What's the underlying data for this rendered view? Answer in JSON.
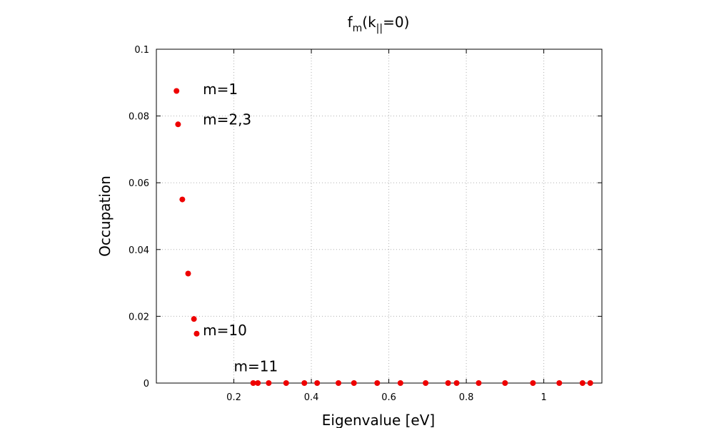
{
  "chart_data": {
    "type": "scatter",
    "title": {
      "main": "f",
      "sub": "m",
      "tail_open": "(k",
      "tail_sub": "||",
      "tail_close": "=0)"
    },
    "xlabel": "Eigenvalue [eV]",
    "ylabel": "Occupation",
    "xlim": [
      0.0,
      1.15
    ],
    "ylim": [
      0,
      0.1
    ],
    "x_ticks": [
      0.2,
      0.4,
      0.6,
      0.8,
      1
    ],
    "x_tick_labels": [
      "0.2",
      "0.4",
      "0.6",
      "0.8",
      "1"
    ],
    "y_ticks": [
      0,
      0.02,
      0.04,
      0.06,
      0.08,
      0.1
    ],
    "y_tick_labels": [
      "0",
      "0.02",
      "0.04",
      "0.06",
      "0.08",
      "0.1"
    ],
    "grid": true,
    "marker_color": "#ee0000",
    "series": [
      {
        "points": [
          {
            "x": 0.052,
            "y": 0.0875
          },
          {
            "x": 0.056,
            "y": 0.0775
          },
          {
            "x": 0.067,
            "y": 0.055
          },
          {
            "x": 0.082,
            "y": 0.0328
          },
          {
            "x": 0.097,
            "y": 0.0192
          },
          {
            "x": 0.104,
            "y": 0.0148
          },
          {
            "x": 0.25,
            "y": 0
          },
          {
            "x": 0.262,
            "y": 0
          },
          {
            "x": 0.29,
            "y": 0
          },
          {
            "x": 0.335,
            "y": 0
          },
          {
            "x": 0.382,
            "y": 0
          },
          {
            "x": 0.415,
            "y": 0
          },
          {
            "x": 0.47,
            "y": 0
          },
          {
            "x": 0.51,
            "y": 0
          },
          {
            "x": 0.57,
            "y": 0
          },
          {
            "x": 0.63,
            "y": 0
          },
          {
            "x": 0.695,
            "y": 0
          },
          {
            "x": 0.753,
            "y": 0
          },
          {
            "x": 0.775,
            "y": 0
          },
          {
            "x": 0.832,
            "y": 0
          },
          {
            "x": 0.9,
            "y": 0
          },
          {
            "x": 0.972,
            "y": 0
          },
          {
            "x": 1.04,
            "y": 0
          },
          {
            "x": 1.1,
            "y": 0
          },
          {
            "x": 1.12,
            "y": 0
          }
        ]
      }
    ],
    "annotations": [
      {
        "text": "m=1",
        "x": 0.12,
        "y": 0.0865
      },
      {
        "text": "m=2,3",
        "x": 0.12,
        "y": 0.0775
      },
      {
        "text": "m=10",
        "x": 0.12,
        "y": 0.0143
      },
      {
        "text": "m=11",
        "x": 0.2,
        "y": 0.0035
      }
    ]
  }
}
